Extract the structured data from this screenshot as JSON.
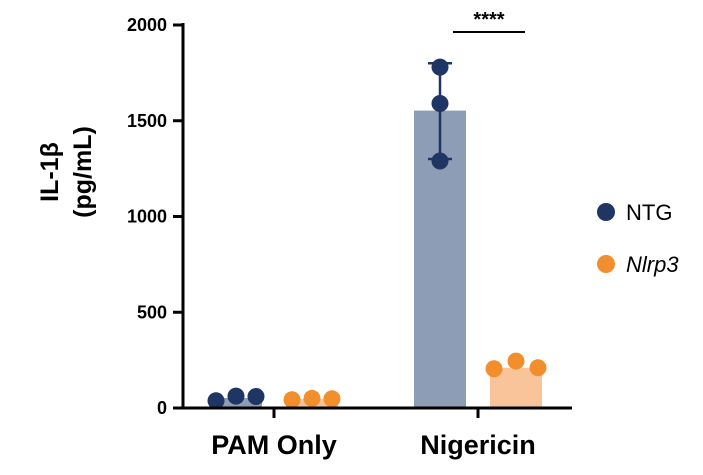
{
  "chart_data": {
    "type": "bar",
    "title": "",
    "xlabel": "",
    "ylabel_line1": "IL-1β",
    "ylabel_line2": "(pg/mL)",
    "ylim": [
      0,
      2000
    ],
    "yticks": [
      0,
      500,
      1000,
      1500,
      2000
    ],
    "ytick_labels": [
      "0",
      "500",
      "1000",
      "1500",
      "2000"
    ],
    "categories": [
      "PAM Only",
      "Nigericin"
    ],
    "series": [
      {
        "name": "NTG",
        "italic": false,
        "color": "#1f3564",
        "bar_color": "#8d9db5",
        "values": [
          52,
          1553
        ],
        "error": [
          null,
          [
            1300,
            1800
          ]
        ],
        "points": [
          [
            38,
            62,
            60
          ],
          [
            1290,
            1590,
            1780
          ]
        ]
      },
      {
        "name": "Nlrp3",
        "italic": true,
        "color": "#f28e2b",
        "bar_color": "#f9c49a",
        "values": [
          47,
          210
        ],
        "error": [
          null,
          null
        ],
        "points": [
          [
            43,
            50,
            48
          ],
          [
            205,
            245,
            210
          ]
        ]
      }
    ],
    "legend_position": "right",
    "significance": [
      {
        "label": "****",
        "category": "Nigericin"
      }
    ],
    "grid": false
  }
}
